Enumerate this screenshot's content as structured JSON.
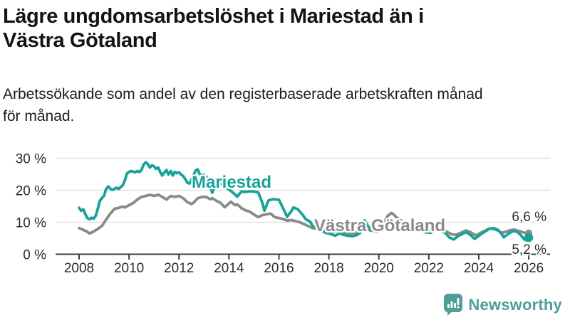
{
  "footer": {
    "brand": "Newsworthy"
  },
  "chart_data": {
    "type": "line",
    "title": "Lägre ungdomsarbetslöshet i Mariestad än i Västra Götaland",
    "title_lines": [
      "Lägre ungdomsarbetslöshet i Mariestad än i",
      "Västra Götaland"
    ],
    "subtitle": "Arbetssökande som andel av den registerbaserade arbetskraften månad för månad.",
    "subtitle_lines": [
      "Arbetssökande som andel av den registerbaserade arbetskraften månad",
      "för månad."
    ],
    "unit": "%",
    "grid": true,
    "x_range": [
      2008,
      2026
    ],
    "ylim": [
      0,
      30
    ],
    "x_ticks": [
      2008,
      2010,
      2012,
      2014,
      2016,
      2018,
      2020,
      2022,
      2024,
      2026
    ],
    "y_ticks": [
      0,
      10,
      20,
      30
    ],
    "y_tick_labels": [
      "0 %",
      "10 %",
      "20 %",
      "30 %"
    ],
    "colors": {
      "mariestad": "#17a398",
      "vastra_gotaland": "#8a8a8a",
      "grid": "#dcdcdc",
      "axis": "#3b3b3b",
      "text": "#2b2b2b"
    },
    "series": [
      {
        "name": "Mariestad",
        "color": "#17a398",
        "end_label": "5,2 %",
        "end_value": 5.2,
        "points": [
          [
            2008.0,
            14.5
          ],
          [
            2008.08,
            13.6
          ],
          [
            2008.17,
            14.0
          ],
          [
            2008.25,
            12.5
          ],
          [
            2008.33,
            11.3
          ],
          [
            2008.42,
            10.9
          ],
          [
            2008.5,
            11.4
          ],
          [
            2008.58,
            11.1
          ],
          [
            2008.67,
            12.1
          ],
          [
            2008.75,
            14.2
          ],
          [
            2008.83,
            16.7
          ],
          [
            2008.92,
            17.6
          ],
          [
            2009.0,
            18.3
          ],
          [
            2009.08,
            20.4
          ],
          [
            2009.17,
            21.2
          ],
          [
            2009.25,
            20.5
          ],
          [
            2009.33,
            20.1
          ],
          [
            2009.42,
            20.4
          ],
          [
            2009.5,
            20.8
          ],
          [
            2009.58,
            20.4
          ],
          [
            2009.67,
            21.0
          ],
          [
            2009.75,
            21.6
          ],
          [
            2009.83,
            23.1
          ],
          [
            2009.92,
            25.3
          ],
          [
            2010.0,
            25.7
          ],
          [
            2010.08,
            26.0
          ],
          [
            2010.17,
            25.8
          ],
          [
            2010.25,
            25.6
          ],
          [
            2010.33,
            26.0
          ],
          [
            2010.42,
            25.7
          ],
          [
            2010.5,
            26.4
          ],
          [
            2010.58,
            28.0
          ],
          [
            2010.67,
            28.7
          ],
          [
            2010.75,
            28.2
          ],
          [
            2010.83,
            27.1
          ],
          [
            2010.92,
            27.8
          ],
          [
            2011.0,
            27.5
          ],
          [
            2011.08,
            26.7
          ],
          [
            2011.17,
            27.1
          ],
          [
            2011.25,
            25.7
          ],
          [
            2011.33,
            24.6
          ],
          [
            2011.42,
            25.6
          ],
          [
            2011.5,
            26.3
          ],
          [
            2011.58,
            24.9
          ],
          [
            2011.67,
            26.0
          ],
          [
            2011.75,
            24.6
          ],
          [
            2011.83,
            25.7
          ],
          [
            2011.92,
            25.3
          ],
          [
            2012.0,
            25.6
          ],
          [
            2012.08,
            24.9
          ],
          [
            2012.17,
            24.4
          ],
          [
            2012.25,
            23.5
          ],
          [
            2012.33,
            22.4
          ],
          [
            2012.42,
            22.1
          ],
          [
            2012.5,
            23.4
          ],
          [
            2012.58,
            24.6
          ],
          [
            2012.67,
            26.2
          ],
          [
            2012.75,
            26.5
          ],
          [
            2012.83,
            25.0
          ],
          [
            2012.92,
            24.6
          ],
          [
            2013.0,
            24.8
          ],
          [
            2013.17,
            23.6
          ],
          [
            2013.33,
            19.2
          ],
          [
            2013.5,
            22.6
          ],
          [
            2013.67,
            22.3
          ],
          [
            2013.83,
            21.0
          ],
          [
            2014.0,
            20.2
          ],
          [
            2014.17,
            19.2
          ],
          [
            2014.33,
            18.0
          ],
          [
            2014.5,
            19.6
          ],
          [
            2014.67,
            19.5
          ],
          [
            2014.83,
            19.7
          ],
          [
            2015.0,
            19.6
          ],
          [
            2015.17,
            19.3
          ],
          [
            2015.33,
            16.2
          ],
          [
            2015.42,
            13.6
          ],
          [
            2015.58,
            16.8
          ],
          [
            2015.75,
            17.2
          ],
          [
            2015.92,
            17.1
          ],
          [
            2016.0,
            17.0
          ],
          [
            2016.17,
            14.3
          ],
          [
            2016.33,
            11.7
          ],
          [
            2016.5,
            13.5
          ],
          [
            2016.58,
            14.6
          ],
          [
            2016.75,
            14.1
          ],
          [
            2016.92,
            12.6
          ],
          [
            2017.08,
            10.9
          ],
          [
            2017.25,
            10.2
          ],
          [
            2017.33,
            9.1
          ],
          [
            2017.42,
            8.3
          ],
          [
            2017.5,
            8.8
          ],
          [
            2017.58,
            7.8
          ],
          [
            2017.75,
            7.1
          ],
          [
            2017.92,
            6.6
          ],
          [
            2018.08,
            6.3
          ],
          [
            2018.25,
            5.8
          ],
          [
            2018.42,
            6.5
          ],
          [
            2018.58,
            6.1
          ],
          [
            2018.75,
            5.8
          ],
          [
            2018.92,
            5.6
          ],
          [
            2019.08,
            5.9
          ],
          [
            2019.25,
            6.6
          ],
          [
            2019.42,
            10.6
          ],
          [
            2019.58,
            8.6
          ],
          [
            2019.75,
            7.4
          ],
          [
            2019.92,
            7.0
          ],
          [
            2020.08,
            7.8
          ],
          [
            2020.25,
            9.6
          ],
          [
            2020.42,
            10.8
          ],
          [
            2020.58,
            10.4
          ],
          [
            2020.75,
            9.7
          ],
          [
            2020.92,
            9.1
          ],
          [
            2021.08,
            8.7
          ],
          [
            2021.25,
            8.2
          ],
          [
            2021.42,
            8.5
          ],
          [
            2021.58,
            7.8
          ],
          [
            2021.75,
            7.2
          ],
          [
            2021.92,
            6.8
          ],
          [
            2022.08,
            6.7
          ],
          [
            2022.25,
            8.0
          ],
          [
            2022.33,
            8.2
          ],
          [
            2022.5,
            7.3
          ],
          [
            2022.67,
            6.6
          ],
          [
            2022.83,
            5.2
          ],
          [
            2023.0,
            4.6
          ],
          [
            2023.17,
            5.7
          ],
          [
            2023.33,
            6.3
          ],
          [
            2023.5,
            6.9
          ],
          [
            2023.67,
            6.0
          ],
          [
            2023.83,
            4.8
          ],
          [
            2023.92,
            5.3
          ],
          [
            2024.08,
            6.2
          ],
          [
            2024.25,
            7.1
          ],
          [
            2024.42,
            7.9
          ],
          [
            2024.58,
            8.2
          ],
          [
            2024.75,
            7.7
          ],
          [
            2024.92,
            6.3
          ],
          [
            2025.0,
            5.3
          ],
          [
            2025.17,
            6.3
          ],
          [
            2025.33,
            7.1
          ],
          [
            2025.5,
            7.2
          ],
          [
            2025.67,
            6.1
          ],
          [
            2025.83,
            4.6
          ],
          [
            2025.92,
            4.3
          ],
          [
            2026.0,
            5.2
          ]
        ]
      },
      {
        "name": "Västra Götaland",
        "color": "#8a8a8a",
        "end_label": "6,6 %",
        "end_value": 6.6,
        "points": [
          [
            2008.0,
            8.2
          ],
          [
            2008.08,
            7.9
          ],
          [
            2008.17,
            7.6
          ],
          [
            2008.33,
            7.0
          ],
          [
            2008.42,
            6.5
          ],
          [
            2008.5,
            6.8
          ],
          [
            2008.58,
            7.1
          ],
          [
            2008.75,
            7.9
          ],
          [
            2008.92,
            8.9
          ],
          [
            2009.08,
            10.8
          ],
          [
            2009.25,
            12.7
          ],
          [
            2009.42,
            14.2
          ],
          [
            2009.58,
            14.5
          ],
          [
            2009.75,
            14.9
          ],
          [
            2009.83,
            14.6
          ],
          [
            2009.92,
            15.0
          ],
          [
            2010.0,
            15.3
          ],
          [
            2010.17,
            16.0
          ],
          [
            2010.33,
            17.1
          ],
          [
            2010.5,
            17.9
          ],
          [
            2010.67,
            18.2
          ],
          [
            2010.83,
            18.6
          ],
          [
            2011.0,
            18.2
          ],
          [
            2011.17,
            18.6
          ],
          [
            2011.33,
            17.9
          ],
          [
            2011.5,
            17.1
          ],
          [
            2011.67,
            18.2
          ],
          [
            2011.83,
            17.9
          ],
          [
            2012.0,
            18.2
          ],
          [
            2012.17,
            17.5
          ],
          [
            2012.33,
            16.3
          ],
          [
            2012.5,
            15.7
          ],
          [
            2012.58,
            16.1
          ],
          [
            2012.75,
            17.5
          ],
          [
            2012.92,
            17.9
          ],
          [
            2013.08,
            17.9
          ],
          [
            2013.25,
            17.2
          ],
          [
            2013.33,
            17.5
          ],
          [
            2013.5,
            16.7
          ],
          [
            2013.67,
            16.0
          ],
          [
            2013.83,
            14.7
          ],
          [
            2013.92,
            15.3
          ],
          [
            2014.08,
            16.4
          ],
          [
            2014.25,
            15.3
          ],
          [
            2014.33,
            15.6
          ],
          [
            2014.5,
            14.4
          ],
          [
            2014.67,
            13.7
          ],
          [
            2014.83,
            13.3
          ],
          [
            2015.0,
            12.4
          ],
          [
            2015.17,
            11.6
          ],
          [
            2015.33,
            12.2
          ],
          [
            2015.5,
            12.5
          ],
          [
            2015.67,
            12.7
          ],
          [
            2015.83,
            11.6
          ],
          [
            2016.0,
            11.3
          ],
          [
            2016.17,
            11.0
          ],
          [
            2016.33,
            10.5
          ],
          [
            2016.5,
            10.7
          ],
          [
            2016.67,
            10.3
          ],
          [
            2016.83,
            10.0
          ],
          [
            2017.0,
            9.4
          ],
          [
            2017.17,
            8.8
          ],
          [
            2017.33,
            8.2
          ],
          [
            2017.5,
            8.0
          ],
          [
            2017.67,
            7.7
          ],
          [
            2017.83,
            7.4
          ],
          [
            2018.0,
            7.1
          ],
          [
            2018.17,
            6.9
          ],
          [
            2018.33,
            7.2
          ],
          [
            2018.5,
            6.9
          ],
          [
            2018.67,
            6.7
          ],
          [
            2018.83,
            6.5
          ],
          [
            2019.0,
            6.6
          ],
          [
            2019.17,
            7.0
          ],
          [
            2019.33,
            7.7
          ],
          [
            2019.5,
            7.9
          ],
          [
            2019.67,
            7.4
          ],
          [
            2019.83,
            7.3
          ],
          [
            2020.0,
            7.6
          ],
          [
            2020.17,
            9.0
          ],
          [
            2020.33,
            11.8
          ],
          [
            2020.5,
            12.9
          ],
          [
            2020.58,
            12.5
          ],
          [
            2020.75,
            11.2
          ],
          [
            2020.92,
            10.3
          ],
          [
            2021.08,
            9.7
          ],
          [
            2021.25,
            9.2
          ],
          [
            2021.42,
            9.4
          ],
          [
            2021.58,
            8.9
          ],
          [
            2021.75,
            8.5
          ],
          [
            2021.92,
            8.1
          ],
          [
            2022.08,
            7.8
          ],
          [
            2022.25,
            8.3
          ],
          [
            2022.42,
            8.1
          ],
          [
            2022.58,
            7.5
          ],
          [
            2022.75,
            6.9
          ],
          [
            2022.92,
            6.2
          ],
          [
            2023.08,
            6.1
          ],
          [
            2023.25,
            6.6
          ],
          [
            2023.42,
            7.2
          ],
          [
            2023.5,
            7.4
          ],
          [
            2023.67,
            6.9
          ],
          [
            2023.83,
            6.1
          ],
          [
            2023.92,
            6.0
          ],
          [
            2024.08,
            6.7
          ],
          [
            2024.25,
            7.3
          ],
          [
            2024.42,
            8.0
          ],
          [
            2024.58,
            7.9
          ],
          [
            2024.75,
            7.5
          ],
          [
            2024.92,
            6.7
          ],
          [
            2025.08,
            7.0
          ],
          [
            2025.25,
            7.5
          ],
          [
            2025.42,
            7.7
          ],
          [
            2025.58,
            7.3
          ],
          [
            2025.75,
            6.9
          ],
          [
            2025.92,
            6.5
          ],
          [
            2026.0,
            6.6
          ]
        ]
      }
    ]
  }
}
